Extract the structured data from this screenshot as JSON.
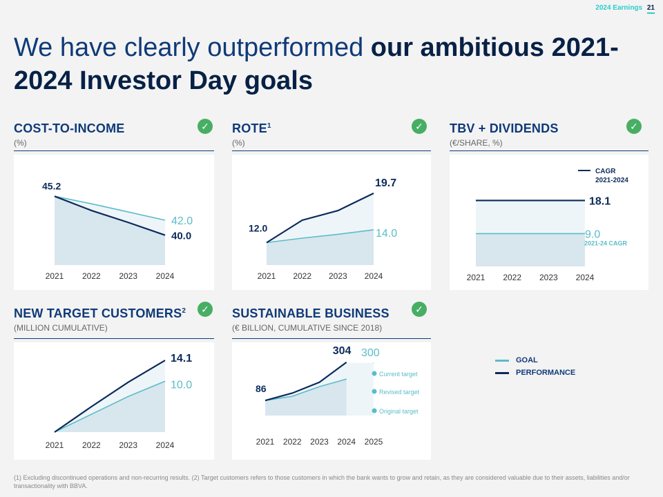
{
  "header": {
    "year_label": "2024 Earnings",
    "page_number": "21"
  },
  "title": {
    "normal": "We have clearly outperformed ",
    "bold": "our ambitious 2021-2024 Investor Day goals"
  },
  "colors": {
    "goal": "#5bbcc8",
    "performance": "#0b2a5b",
    "check": "#48ae64"
  },
  "panels": {
    "cti": {
      "title": "COST-TO-INCOME",
      "sup": "",
      "subtitle": "(%)"
    },
    "rote": {
      "title": "ROTE",
      "sup": "1",
      "subtitle": "(%)"
    },
    "tbv": {
      "title": "TBV + DIVIDENDS",
      "sup": "",
      "subtitle": "(€/SHARE, %)"
    },
    "customers": {
      "title": "NEW TARGET CUSTOMERS",
      "sup": "2",
      "subtitle": "(MILLION CUMULATIVE)"
    },
    "sustainable": {
      "title": "SUSTAINABLE BUSINESS",
      "sup": "",
      "subtitle": "(€ BILLION, CUMULATIVE SINCE 2018)"
    }
  },
  "legend": {
    "goal": "GOAL",
    "performance": "PERFORMANCE"
  },
  "footnote": "(1) Excluding discontinued operations and non-recurring results. (2) Target customers refers to those customers in which the bank wants to grow and retain, as they are considered valuable due to their assets, liabilities and/or transactionality with BBVA.",
  "chart_data": [
    {
      "id": "cti",
      "type": "line",
      "title": "COST-TO-INCOME",
      "unit": "%",
      "categories": [
        "2021",
        "2022",
        "2023",
        "2024"
      ],
      "ylim": [
        36,
        48
      ],
      "series": [
        {
          "name": "GOAL",
          "values": [
            45.2,
            44.2,
            43.1,
            42.0
          ],
          "end_label": "42.0"
        },
        {
          "name": "PERFORMANCE",
          "values": [
            45.2,
            43.3,
            41.7,
            40.0
          ],
          "start_label": "45.2",
          "end_label": "40.0"
        }
      ]
    },
    {
      "id": "rote",
      "type": "line",
      "title": "ROTE",
      "unit": "%",
      "categories": [
        "2021",
        "2022",
        "2023",
        "2024"
      ],
      "ylim": [
        8.5,
        22.5
      ],
      "series": [
        {
          "name": "GOAL",
          "values": [
            12.0,
            12.7,
            13.3,
            14.0
          ],
          "end_label": "14.0"
        },
        {
          "name": "PERFORMANCE",
          "values": [
            12.0,
            15.5,
            17.0,
            19.7
          ],
          "start_label": "12.0",
          "end_label": "19.7"
        }
      ]
    },
    {
      "id": "tbv",
      "type": "line",
      "title": "TBV + DIVIDENDS",
      "unit": "€/SHARE, %",
      "categories": [
        "2021",
        "2022",
        "2023",
        "2024"
      ],
      "ylim": [
        0,
        25
      ],
      "legend_label": "CAGR",
      "legend_sub": "2021-2024",
      "goal_caption": "2021-24 CAGR",
      "series": [
        {
          "name": "GOAL",
          "values": [
            9.0,
            9.0,
            9.0,
            9.0
          ],
          "end_label": "9.0"
        },
        {
          "name": "PERFORMANCE",
          "values": [
            18.1,
            18.1,
            18.1,
            18.1
          ],
          "end_label": "18.1"
        }
      ]
    },
    {
      "id": "customers",
      "type": "line",
      "title": "NEW TARGET CUSTOMERS",
      "unit": "million cumulative",
      "categories": [
        "2021",
        "2022",
        "2023",
        "2024"
      ],
      "ylim": [
        0,
        16
      ],
      "series": [
        {
          "name": "GOAL",
          "values": [
            0,
            3.5,
            7.0,
            10.0
          ],
          "end_label": "10.0"
        },
        {
          "name": "PERFORMANCE",
          "values": [
            0,
            5.0,
            9.8,
            14.1
          ],
          "end_label": "14.1"
        }
      ]
    },
    {
      "id": "sustainable",
      "type": "line",
      "title": "SUSTAINABLE BUSINESS",
      "unit": "€ billion, cumulative since 2018",
      "categories": [
        "2021",
        "2022",
        "2023",
        "2024",
        "2025"
      ],
      "ylim": [
        0,
        370
      ],
      "start_label": "86",
      "series": [
        {
          "name": "GOAL",
          "values": [
            86,
            110,
            165,
            208,
            300
          ],
          "end_label": "300"
        },
        {
          "name": "PERFORMANCE",
          "values": [
            86,
            128,
            190,
            304,
            null
          ],
          "end_label": "304"
        }
      ],
      "annotations": [
        "Current target",
        "Revised target",
        "Original target"
      ]
    }
  ]
}
